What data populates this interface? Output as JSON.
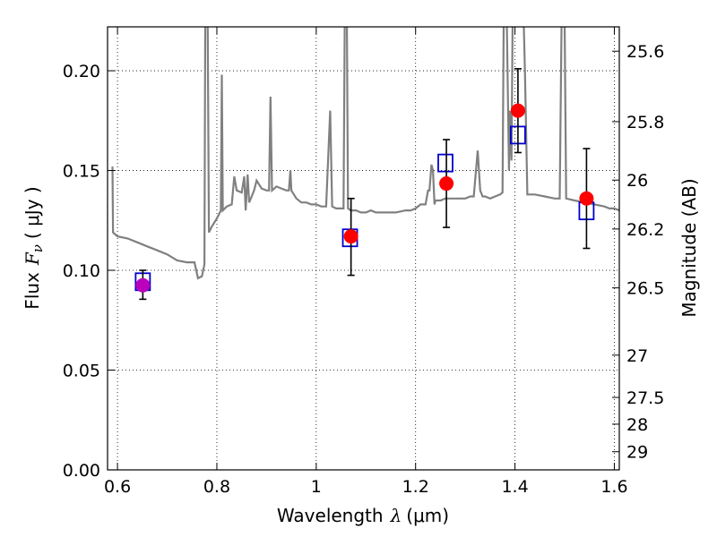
{
  "chart_data": {
    "type": "scatter",
    "title": "",
    "xlabel_text": "Wavelength",
    "xlabel_symbol": "λ",
    "xlabel_unit": "(μm)",
    "ylabel_text": "Flux",
    "ylabel_symbol": "F",
    "ylabel_sub": "ν",
    "ylabel_unit": "( μJy )",
    "y2label": "Magnitude (AB)",
    "xlim": [
      0.58,
      1.61
    ],
    "ylim": [
      0.0,
      0.222
    ],
    "grid": true,
    "x_ticks": [
      {
        "value": 0.6,
        "label": "0.6"
      },
      {
        "value": 0.8,
        "label": "0.8"
      },
      {
        "value": 1.0,
        "label": "1"
      },
      {
        "value": 1.2,
        "label": "1.2"
      },
      {
        "value": 1.4,
        "label": "1.4"
      },
      {
        "value": 1.6,
        "label": "1.6"
      }
    ],
    "y_ticks": [
      {
        "value": 0.0,
        "label": "0.00"
      },
      {
        "value": 0.05,
        "label": "0.05"
      },
      {
        "value": 0.1,
        "label": "0.10"
      },
      {
        "value": 0.15,
        "label": "0.15"
      },
      {
        "value": 0.2,
        "label": "0.20"
      }
    ],
    "y2_ticks": [
      {
        "label": "25.6",
        "flux": 0.2098
      },
      {
        "label": "25.8",
        "flux": 0.1745
      },
      {
        "label": "26",
        "flux": 0.1452
      },
      {
        "label": "26.2",
        "flux": 0.1207
      },
      {
        "label": "26.5",
        "flux": 0.0912
      },
      {
        "label": "27",
        "flux": 0.0575
      },
      {
        "label": "27.5",
        "flux": 0.0363
      },
      {
        "label": "28",
        "flux": 0.0229
      },
      {
        "label": "29",
        "flux": 0.0091
      }
    ],
    "series": [
      {
        "type": "line",
        "color": "#808080",
        "points": [
          [
            0.59,
            0.152
          ],
          [
            0.591,
            0.119
          ],
          [
            0.6,
            0.117
          ],
          [
            0.62,
            0.116
          ],
          [
            0.64,
            0.114
          ],
          [
            0.66,
            0.112
          ],
          [
            0.68,
            0.11
          ],
          [
            0.7,
            0.108
          ],
          [
            0.72,
            0.105
          ],
          [
            0.74,
            0.104
          ],
          [
            0.755,
            0.104
          ],
          [
            0.762,
            0.096
          ],
          [
            0.77,
            0.097
          ],
          [
            0.775,
            0.103
          ],
          [
            0.777,
            0.25
          ],
          [
            0.781,
            0.25
          ],
          [
            0.784,
            0.119
          ],
          [
            0.79,
            0.122
          ],
          [
            0.8,
            0.126
          ],
          [
            0.808,
            0.13
          ],
          [
            0.81,
            0.198
          ],
          [
            0.812,
            0.13
          ],
          [
            0.82,
            0.132
          ],
          [
            0.83,
            0.133
          ],
          [
            0.835,
            0.147
          ],
          [
            0.84,
            0.14
          ],
          [
            0.85,
            0.139
          ],
          [
            0.855,
            0.147
          ],
          [
            0.858,
            0.13
          ],
          [
            0.862,
            0.148
          ],
          [
            0.865,
            0.134
          ],
          [
            0.87,
            0.137
          ],
          [
            0.875,
            0.14
          ],
          [
            0.88,
            0.145
          ],
          [
            0.89,
            0.141
          ],
          [
            0.9,
            0.14
          ],
          [
            0.905,
            0.14
          ],
          [
            0.908,
            0.187
          ],
          [
            0.911,
            0.14
          ],
          [
            0.92,
            0.142
          ],
          [
            0.93,
            0.141
          ],
          [
            0.94,
            0.14
          ],
          [
            0.945,
            0.14
          ],
          [
            0.948,
            0.15
          ],
          [
            0.95,
            0.14
          ],
          [
            0.96,
            0.136
          ],
          [
            0.97,
            0.134
          ],
          [
            0.98,
            0.134
          ],
          [
            0.99,
            0.133
          ],
          [
            1.0,
            0.133
          ],
          [
            1.01,
            0.132
          ],
          [
            1.02,
            0.132
          ],
          [
            1.028,
            0.18
          ],
          [
            1.032,
            0.132
          ],
          [
            1.04,
            0.131
          ],
          [
            1.05,
            0.131
          ],
          [
            1.055,
            0.131
          ],
          [
            1.058,
            0.25
          ],
          [
            1.061,
            0.25
          ],
          [
            1.064,
            0.131
          ],
          [
            1.07,
            0.13
          ],
          [
            1.08,
            0.13
          ],
          [
            1.09,
            0.129
          ],
          [
            1.1,
            0.129
          ],
          [
            1.11,
            0.13
          ],
          [
            1.12,
            0.129
          ],
          [
            1.14,
            0.129
          ],
          [
            1.16,
            0.129
          ],
          [
            1.18,
            0.13
          ],
          [
            1.19,
            0.13
          ],
          [
            1.2,
            0.131
          ],
          [
            1.21,
            0.133
          ],
          [
            1.22,
            0.133
          ],
          [
            1.225,
            0.14
          ],
          [
            1.228,
            0.14
          ],
          [
            1.232,
            0.153
          ],
          [
            1.235,
            0.15
          ],
          [
            1.238,
            0.133
          ],
          [
            1.24,
            0.135
          ],
          [
            1.25,
            0.135
          ],
          [
            1.26,
            0.136
          ],
          [
            1.27,
            0.136
          ],
          [
            1.28,
            0.136
          ],
          [
            1.29,
            0.136
          ],
          [
            1.3,
            0.136
          ],
          [
            1.31,
            0.137
          ],
          [
            1.317,
            0.137
          ],
          [
            1.325,
            0.16
          ],
          [
            1.33,
            0.14
          ],
          [
            1.335,
            0.137
          ],
          [
            1.34,
            0.137
          ],
          [
            1.35,
            0.136
          ],
          [
            1.36,
            0.137
          ],
          [
            1.37,
            0.138
          ],
          [
            1.375,
            0.139
          ],
          [
            1.378,
            0.25
          ],
          [
            1.382,
            0.25
          ],
          [
            1.385,
            0.2
          ],
          [
            1.388,
            0.15
          ],
          [
            1.39,
            0.18
          ],
          [
            1.393,
            0.155
          ],
          [
            1.396,
            0.25
          ],
          [
            1.4,
            0.25
          ],
          [
            1.403,
            0.24
          ],
          [
            1.408,
            0.25
          ],
          [
            1.415,
            0.25
          ],
          [
            1.42,
            0.2
          ],
          [
            1.425,
            0.138
          ],
          [
            1.44,
            0.138
          ],
          [
            1.46,
            0.137
          ],
          [
            1.48,
            0.136
          ],
          [
            1.49,
            0.136
          ],
          [
            1.495,
            0.25
          ],
          [
            1.499,
            0.25
          ],
          [
            1.503,
            0.136
          ],
          [
            1.52,
            0.135
          ],
          [
            1.54,
            0.134
          ],
          [
            1.56,
            0.133
          ],
          [
            1.58,
            0.132
          ],
          [
            1.59,
            0.131
          ],
          [
            1.6,
            0.131
          ],
          [
            1.61,
            0.13
          ]
        ]
      },
      {
        "type": "points",
        "marker": "open-square",
        "color": "#0000cc",
        "points": [
          [
            0.651,
            0.0945
          ],
          [
            1.068,
            0.1165
          ],
          [
            1.26,
            0.154
          ],
          [
            1.406,
            0.168
          ],
          [
            1.544,
            0.13
          ]
        ]
      },
      {
        "type": "points",
        "marker": "filled-circle",
        "color": "#ff0000",
        "errorbars": true,
        "points": [
          {
            "x": 1.07,
            "y": 0.117,
            "ylow": 0.0975,
            "yhigh": 0.136
          },
          {
            "x": 1.262,
            "y": 0.1435,
            "ylow": 0.1215,
            "yhigh": 0.1655
          },
          {
            "x": 1.406,
            "y": 0.18,
            "ylow": 0.159,
            "yhigh": 0.201
          },
          {
            "x": 1.544,
            "y": 0.136,
            "ylow": 0.111,
            "yhigh": 0.161
          }
        ]
      },
      {
        "type": "points",
        "marker": "filled-circle",
        "color": "#bb00bb",
        "errorbars": true,
        "points": [
          {
            "x": 0.651,
            "y": 0.0925,
            "ylow": 0.0855,
            "yhigh": 0.1
          }
        ]
      }
    ]
  }
}
